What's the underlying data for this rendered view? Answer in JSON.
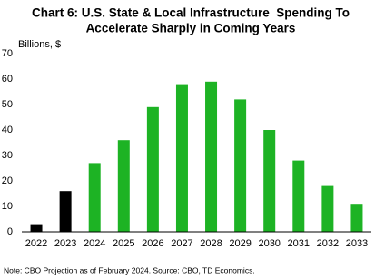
{
  "chart_data": {
    "type": "bar",
    "title": [
      "Chart 6: U.S. State & Local Infrastructure  Spending To",
      "Accelerate Sharply in Coming Years"
    ],
    "y_label": "Billions, $",
    "note": "Note: CBO Projection as of February 2024. Source: CBO, TD Economics.",
    "categories": [
      "2022",
      "2023",
      "2024",
      "2025",
      "2026",
      "2027",
      "2028",
      "2029",
      "2030",
      "2031",
      "2032",
      "2033"
    ],
    "values": [
      3,
      16,
      27,
      36,
      49,
      58,
      59,
      52,
      40,
      28,
      18,
      11
    ],
    "colors": [
      "#000000",
      "#000000",
      "#1db324",
      "#1db324",
      "#1db324",
      "#1db324",
      "#1db324",
      "#1db324",
      "#1db324",
      "#1db324",
      "#1db324",
      "#1db324"
    ],
    "ylim": [
      0,
      70
    ],
    "yticks": [
      0,
      10,
      20,
      30,
      40,
      50,
      60,
      70
    ],
    "grid": false
  }
}
